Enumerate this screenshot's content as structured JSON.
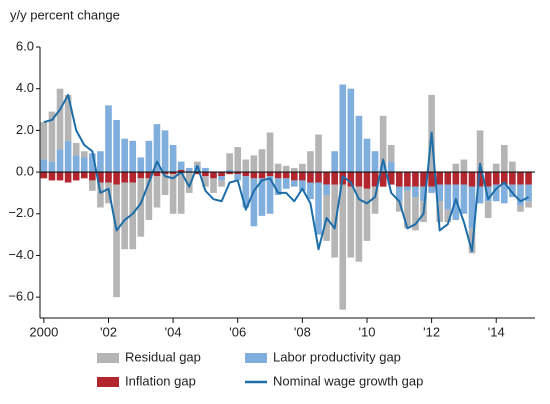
{
  "chart_data": {
    "type": "bar_line",
    "y_label": "y/y percent change",
    "x": [
      2000,
      2000.25,
      2000.5,
      2000.75,
      2001,
      2001.25,
      2001.5,
      2001.75,
      2002,
      2002.25,
      2002.5,
      2002.75,
      2003,
      2003.25,
      2003.5,
      2003.75,
      2004,
      2004.25,
      2004.5,
      2004.75,
      2005,
      2005.25,
      2005.5,
      2005.75,
      2006,
      2006.25,
      2006.5,
      2006.75,
      2007,
      2007.25,
      2007.5,
      2007.75,
      2008,
      2008.25,
      2008.5,
      2008.75,
      2009,
      2009.25,
      2009.5,
      2009.75,
      2010,
      2010.25,
      2010.5,
      2010.75,
      2011,
      2011.25,
      2011.5,
      2011.75,
      2012,
      2012.25,
      2012.5,
      2012.75,
      2013,
      2013.25,
      2013.5,
      2013.75,
      2014,
      2014.25,
      2014.5,
      2014.75,
      2015
    ],
    "series": [
      {
        "name": "Residual gap",
        "color": "#b5b5b5",
        "kind": "bar",
        "values": [
          1.8,
          2.4,
          2.9,
          2.2,
          0.6,
          0.3,
          -0.5,
          -1.2,
          -1.0,
          -5.4,
          -3.2,
          -3.2,
          -2.8,
          -2.0,
          -1.5,
          -1.0,
          -1.9,
          -2.0,
          -1.0,
          0.2,
          -0.5,
          -0.7,
          -0.3,
          0.8,
          1.2,
          0.6,
          0.8,
          1.1,
          1.9,
          0.4,
          0.3,
          0.2,
          0.4,
          1.0,
          1.8,
          -2.2,
          -3.5,
          -6.0,
          -3.4,
          -3.6,
          -2.5,
          -1.3,
          2.4,
          0.8,
          -0.5,
          -1.8,
          -1.6,
          -1.0,
          3.7,
          -1.0,
          -0.6,
          0.4,
          0.6,
          -1.2,
          2.0,
          -0.8,
          0.4,
          1.3,
          0.5,
          -0.3,
          -0.3
        ]
      },
      {
        "name": "Labor productivity gap",
        "color": "#80aedd",
        "kind": "bar",
        "values": [
          0.6,
          0.5,
          1.1,
          1.5,
          0.8,
          0.7,
          0.9,
          1.0,
          3.2,
          2.5,
          1.6,
          1.5,
          0.7,
          1.5,
          2.3,
          2.0,
          1.3,
          0.4,
          0.2,
          0.3,
          0.2,
          0.0,
          -0.2,
          0.1,
          -0.3,
          -1.5,
          -2.3,
          -1.8,
          -1.8,
          -0.8,
          -0.5,
          -0.3,
          -0.5,
          -0.8,
          -2.5,
          -0.5,
          1.0,
          4.2,
          4.0,
          2.7,
          1.6,
          1.0,
          0.3,
          0.5,
          -0.7,
          -0.2,
          -0.5,
          -0.7,
          -0.3,
          -0.8,
          -1.2,
          -1.7,
          -1.4,
          -2.0,
          -0.8,
          -0.7,
          -0.8,
          -0.9,
          -0.6,
          -1.0,
          -0.8
        ]
      },
      {
        "name": "Inflation gap",
        "color": "#b3262e",
        "kind": "bar",
        "values": [
          -0.3,
          -0.4,
          -0.4,
          -0.5,
          -0.4,
          -0.3,
          -0.4,
          -0.5,
          -0.5,
          -0.6,
          -0.5,
          -0.5,
          -0.3,
          -0.3,
          -0.2,
          -0.1,
          -0.1,
          0.1,
          0.0,
          -0.1,
          -0.2,
          -0.3,
          -0.2,
          -0.1,
          -0.1,
          -0.2,
          -0.3,
          -0.3,
          -0.2,
          -0.3,
          -0.3,
          -0.4,
          -0.4,
          -0.5,
          -0.5,
          -0.6,
          -0.6,
          -0.6,
          -0.7,
          -0.7,
          -0.8,
          -0.7,
          -0.7,
          -0.6,
          -0.7,
          -0.7,
          -0.7,
          -0.7,
          -0.7,
          -0.6,
          -0.6,
          -0.6,
          -0.6,
          -0.7,
          -0.7,
          -0.7,
          -0.6,
          -0.6,
          -0.6,
          -0.6,
          -0.6
        ]
      },
      {
        "name": "Nominal wage growth gap",
        "color": "#1d6ea8",
        "kind": "line",
        "values": [
          2.4,
          2.5,
          3.0,
          3.7,
          2.0,
          1.3,
          1.0,
          -1.0,
          -0.8,
          -2.8,
          -2.3,
          -2.0,
          -1.5,
          -0.5,
          0.5,
          -0.2,
          -0.3,
          0.0,
          -0.7,
          0.3,
          -0.9,
          -1.3,
          -1.4,
          -0.5,
          -0.4,
          -1.8,
          -0.9,
          -0.4,
          -0.3,
          -1.0,
          -1.0,
          -1.4,
          -0.8,
          -1.5,
          -3.7,
          -2.2,
          -2.7,
          -0.2,
          -0.5,
          -1.3,
          -1.5,
          -1.2,
          0.6,
          -1.0,
          -1.4,
          -2.7,
          -2.5,
          -2.0,
          1.9,
          -2.8,
          -2.5,
          -1.3,
          -2.4,
          -3.8,
          0.4,
          -1.3,
          -0.8,
          -0.5,
          -1.0,
          -1.4,
          -1.2
        ]
      }
    ],
    "xlim": [
      1999.88,
      2015.2
    ],
    "xticks": [
      2000,
      {
        "value": 2002,
        "label": "'02"
      },
      {
        "value": 2004,
        "label": "'04"
      },
      {
        "value": 2006,
        "label": "'06"
      },
      {
        "value": 2008,
        "label": "'08"
      },
      {
        "value": 2010,
        "label": "'10"
      },
      {
        "value": 2012,
        "label": "'12"
      },
      {
        "value": 2014,
        "label": "'14"
      }
    ],
    "ylim": [
      -7,
      6
    ],
    "yticks": [
      {
        "value": 6,
        "label": "6.0"
      },
      {
        "value": 4,
        "label": "4.0"
      },
      {
        "value": 2,
        "label": "2.0"
      },
      {
        "value": 0,
        "label": "0.0"
      },
      {
        "value": -2,
        "label": "−2.0"
      },
      {
        "value": -4,
        "label": "−4.0"
      },
      {
        "value": -6,
        "label": "−6.0"
      }
    ],
    "grid": false
  }
}
